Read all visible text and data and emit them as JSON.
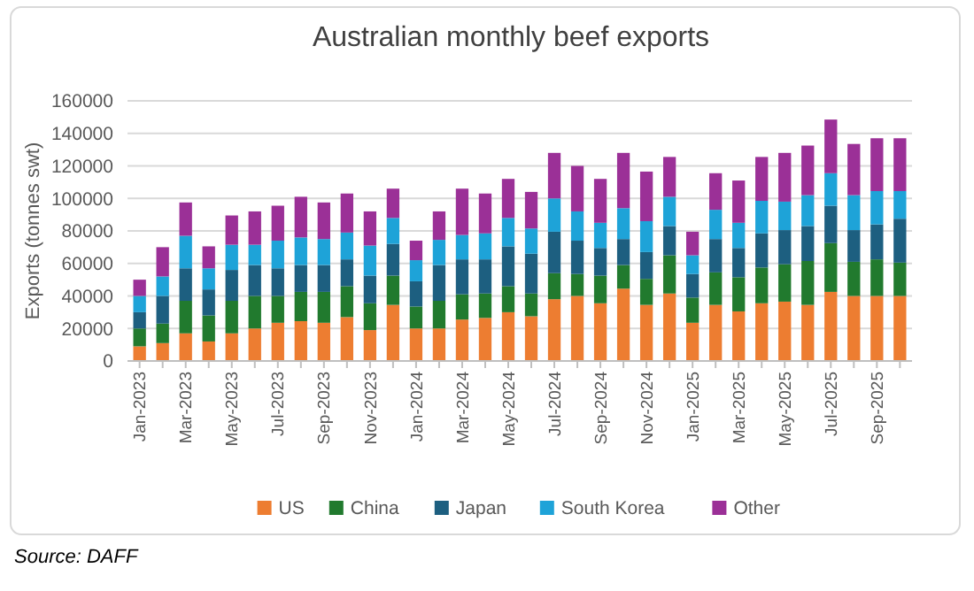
{
  "chart_data": {
    "type": "bar",
    "stacked": true,
    "title": "Australian monthly beef exports",
    "ylabel": "Exports (tonnes swt)",
    "categories": [
      "Jan-2023",
      null,
      "Mar-2023",
      null,
      "May-2023",
      null,
      "Jul-2023",
      null,
      "Sep-2023",
      null,
      "Nov-2023",
      null,
      "Jan-2024",
      null,
      "Mar-2024",
      null,
      "May-2024",
      null,
      "Jul-2024",
      null,
      "Sep-2024",
      null,
      "Nov-2024",
      null,
      "Jan-2025",
      null,
      "Mar-2025",
      null,
      "May-2025",
      null,
      "Jul-2025",
      null,
      "Sep-2025",
      null
    ],
    "series": [
      {
        "name": "US",
        "color": "#ed7d31",
        "values": [
          9000,
          11000,
          17000,
          12000,
          17000,
          20000,
          23500,
          24500,
          23500,
          27000,
          19000,
          34500,
          20000,
          20000,
          25500,
          26500,
          30000,
          27500,
          38000,
          40000,
          35500,
          44500,
          34500,
          41500,
          23500,
          34500,
          30500,
          35500,
          36500,
          34500,
          42500,
          40000,
          40000,
          40000
        ]
      },
      {
        "name": "China",
        "color": "#217a2e",
        "values": [
          11000,
          12000,
          20000,
          16000,
          20000,
          20000,
          16500,
          18000,
          19000,
          19000,
          16500,
          18000,
          13500,
          17000,
          15500,
          15000,
          16000,
          14000,
          16000,
          13500,
          17000,
          14500,
          16000,
          23500,
          15500,
          20000,
          21000,
          22000,
          23000,
          27000,
          30000,
          21000,
          22500,
          20500
        ]
      },
      {
        "name": "Japan",
        "color": "#1d5f80",
        "values": [
          10000,
          17000,
          20000,
          16000,
          19000,
          19000,
          17000,
          16500,
          16500,
          16500,
          17000,
          19500,
          15500,
          22000,
          21500,
          21000,
          24500,
          24500,
          25500,
          20500,
          17000,
          16000,
          16500,
          18000,
          14500,
          20500,
          18000,
          21000,
          21000,
          21500,
          23000,
          19500,
          21500,
          27000
        ]
      },
      {
        "name": "South Korea",
        "color": "#1ea3d8",
        "values": [
          10000,
          12000,
          20000,
          13000,
          15500,
          12500,
          17000,
          17000,
          16000,
          16500,
          18500,
          16000,
          13000,
          15500,
          15000,
          16000,
          17500,
          15500,
          20500,
          18000,
          15500,
          19000,
          19000,
          18000,
          11500,
          18000,
          15500,
          20000,
          17500,
          19000,
          20000,
          21500,
          20500,
          17000
        ]
      },
      {
        "name": "Other",
        "color": "#9b3097",
        "values": [
          10000,
          18000,
          20500,
          13500,
          18000,
          20500,
          21500,
          25000,
          22500,
          24000,
          21000,
          18000,
          12000,
          17500,
          28500,
          24500,
          24000,
          22500,
          28000,
          28000,
          27000,
          34000,
          30500,
          24500,
          14500,
          22500,
          26000,
          27000,
          30000,
          30500,
          33000,
          31500,
          32500,
          32500
        ]
      }
    ],
    "ylim": [
      0,
      160000
    ],
    "yticks": [
      0,
      20000,
      40000,
      60000,
      80000,
      100000,
      120000,
      140000,
      160000
    ],
    "grid": "y",
    "legend": "bottom",
    "annotations": [
      "Source: DAFF"
    ]
  }
}
